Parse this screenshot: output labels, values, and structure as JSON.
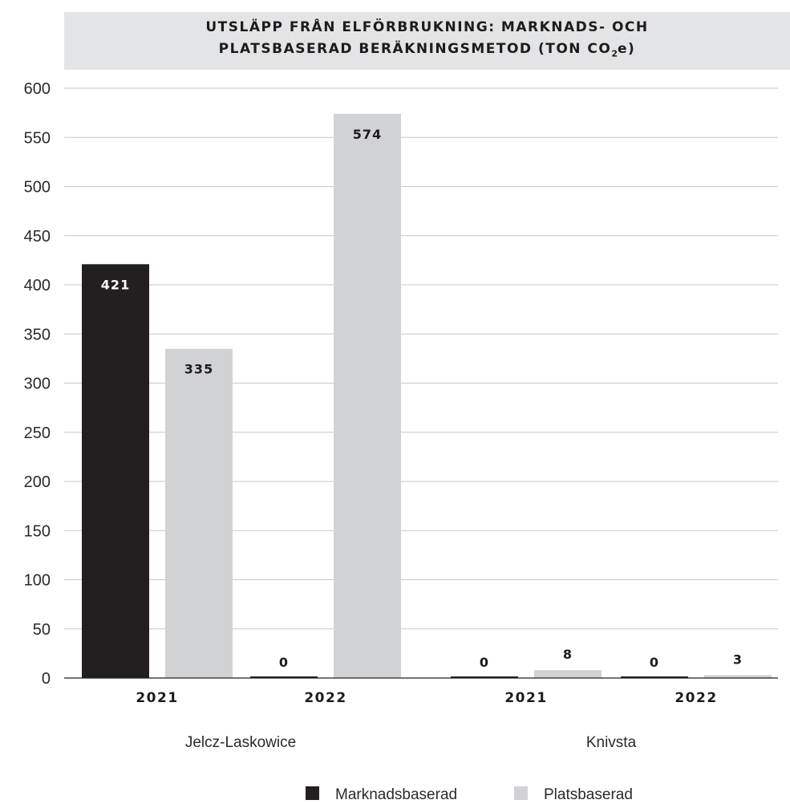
{
  "chart_data": {
    "type": "bar",
    "title_line1": "UTSLÄPP FRÅN ELFÖRBRUKNING: MARKNADS- OCH",
    "title_line2_pre": "PLATSBASERAD BERÄKNINGSMETOD (TON CO",
    "title_line2_sub": "2",
    "title_line2_post": "e)",
    "groups": [
      "Jelcz-Laskowice",
      "Knivsta"
    ],
    "categories": [
      {
        "group": "Jelcz-Laskowice",
        "label": "2021"
      },
      {
        "group": "Jelcz-Laskowice",
        "label": "2022"
      },
      {
        "group": "Knivsta",
        "label": "2021"
      },
      {
        "group": "Knivsta",
        "label": "2022"
      }
    ],
    "series": [
      {
        "name": "Marknadsbaserad",
        "color": "#231f20",
        "values": [
          421,
          0,
          0,
          0
        ]
      },
      {
        "name": "Platsbaserad",
        "color": "#d1d2d4",
        "values": [
          335,
          574,
          8,
          3
        ]
      }
    ],
    "data_labels": [
      [
        "421",
        "0",
        "0",
        "0"
      ],
      [
        "335",
        "574",
        "8",
        "3"
      ]
    ],
    "ylim": [
      0,
      600
    ],
    "yticks": [
      "0",
      "50",
      "100",
      "150",
      "200",
      "250",
      "300",
      "350",
      "400",
      "450",
      "500",
      "550",
      "600"
    ],
    "grid": true,
    "legend_position": "bottom-center"
  }
}
